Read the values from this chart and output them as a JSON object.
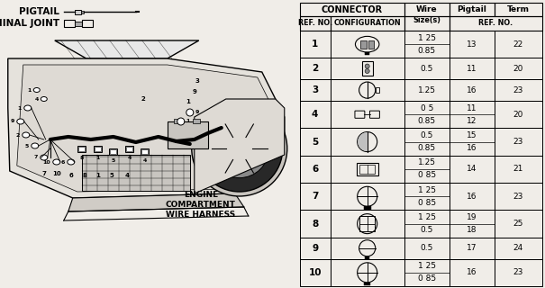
{
  "bg_color": "#f5f5f0",
  "left_panel": {
    "pigtail_label": "PIGTAIL",
    "terminal_label": "TERMINAL JOINT",
    "engine_label": "ENGINE\nCOMPARTMENT\nWIRE HARNESS"
  },
  "table": {
    "rows": [
      {
        "ref": "1",
        "wire": "1 25\n0.85",
        "pigtail": "13",
        "term": "22"
      },
      {
        "ref": "2",
        "wire": "0.5",
        "pigtail": "11",
        "term": "20"
      },
      {
        "ref": "3",
        "wire": "1.25",
        "pigtail": "16",
        "term": "23"
      },
      {
        "ref": "4",
        "wire": "0 5\n0.85",
        "pigtail": "11\n12",
        "term": "20"
      },
      {
        "ref": "5",
        "wire": "0.5\n0.85",
        "pigtail": "15\n16",
        "term": "23"
      },
      {
        "ref": "6",
        "wire": "1.25\n0 85",
        "pigtail": "14",
        "term": "21"
      },
      {
        "ref": "7",
        "wire": "1 25\n0 85",
        "pigtail": "16",
        "term": "23"
      },
      {
        "ref": "8",
        "wire": "1 25\n0.5",
        "pigtail": "19\n18",
        "term": "25"
      },
      {
        "ref": "9",
        "wire": "0.5",
        "pigtail": "17",
        "term": "24"
      },
      {
        "ref": "10",
        "wire": "1 25\n0 85",
        "pigtail": "16",
        "term": "23"
      }
    ]
  }
}
